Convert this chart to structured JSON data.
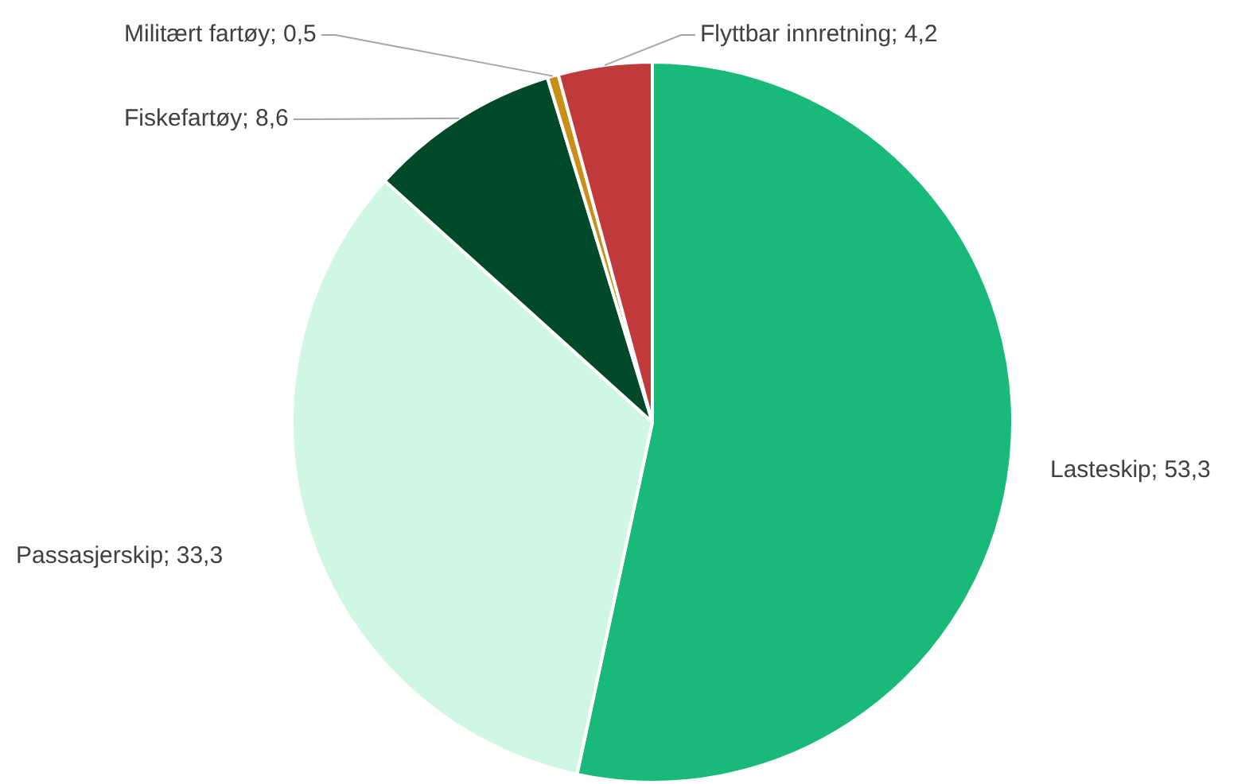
{
  "chart_data": {
    "type": "pie",
    "categories": [
      "Lasteskip",
      "Passasjerskip",
      "Fiskefartøy",
      "Militært fartøy",
      "Flyttbar innretning"
    ],
    "values": [
      53.3,
      33.3,
      8.6,
      0.5,
      4.2
    ],
    "colors": [
      "#19b97a",
      "#d0f7e3",
      "#004a2a",
      "#c8901a",
      "#c0393b"
    ],
    "value_labels": [
      "53,3",
      "33,3",
      "8,6",
      "0,5",
      "4,2"
    ],
    "legend": false
  }
}
